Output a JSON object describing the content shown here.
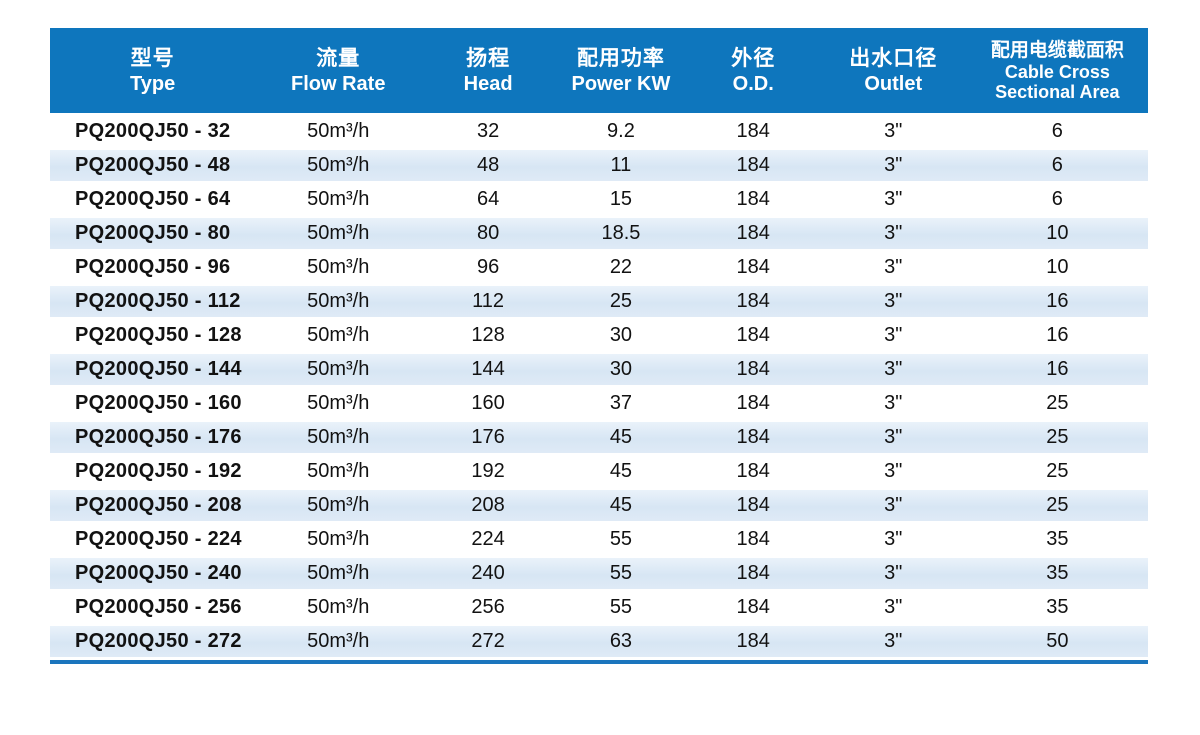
{
  "colors": {
    "header_bg": "#0e76bd",
    "header_text": "#ffffff",
    "stripe": "#d9e7f5",
    "bottom_rule": "#1b75bd",
    "body_text": "#121212",
    "page_bg": "#ffffff"
  },
  "table": {
    "columns": [
      {
        "zh": "型号",
        "en": [
          "Type"
        ]
      },
      {
        "zh": "流量",
        "en": [
          "Flow Rate"
        ]
      },
      {
        "zh": "扬程",
        "en": [
          "Head"
        ]
      },
      {
        "zh": "配用功率",
        "en": [
          "Power KW"
        ]
      },
      {
        "zh": "外径",
        "en": [
          "O.D."
        ]
      },
      {
        "zh": "出水口径",
        "en": [
          "Outlet"
        ]
      },
      {
        "zh": "配用电缆截面积",
        "en": [
          "Cable Cross",
          "Sectional Area"
        ]
      }
    ],
    "rows": [
      [
        "PQ200QJ50 - 32",
        "50m³/h",
        "32",
        "9.2",
        "184",
        "3\"",
        "6"
      ],
      [
        "PQ200QJ50 - 48",
        "50m³/h",
        "48",
        "11",
        "184",
        "3\"",
        "6"
      ],
      [
        "PQ200QJ50 - 64",
        "50m³/h",
        "64",
        "15",
        "184",
        "3\"",
        "6"
      ],
      [
        "PQ200QJ50 - 80",
        "50m³/h",
        "80",
        "18.5",
        "184",
        "3\"",
        "10"
      ],
      [
        "PQ200QJ50 - 96",
        "50m³/h",
        "96",
        "22",
        "184",
        "3\"",
        "10"
      ],
      [
        "PQ200QJ50 - 112",
        "50m³/h",
        "112",
        "25",
        "184",
        "3\"",
        "16"
      ],
      [
        "PQ200QJ50 - 128",
        "50m³/h",
        "128",
        "30",
        "184",
        "3\"",
        "16"
      ],
      [
        "PQ200QJ50 - 144",
        "50m³/h",
        "144",
        "30",
        "184",
        "3\"",
        "16"
      ],
      [
        "PQ200QJ50 - 160",
        "50m³/h",
        "160",
        "37",
        "184",
        "3\"",
        "25"
      ],
      [
        "PQ200QJ50 - 176",
        "50m³/h",
        "176",
        "45",
        "184",
        "3\"",
        "25"
      ],
      [
        "PQ200QJ50 - 192",
        "50m³/h",
        "192",
        "45",
        "184",
        "3\"",
        "25"
      ],
      [
        "PQ200QJ50 - 208",
        "50m³/h",
        "208",
        "45",
        "184",
        "3\"",
        "25"
      ],
      [
        "PQ200QJ50 - 224",
        "50m³/h",
        "224",
        "55",
        "184",
        "3\"",
        "35"
      ],
      [
        "PQ200QJ50 - 240",
        "50m³/h",
        "240",
        "55",
        "184",
        "3\"",
        "35"
      ],
      [
        "PQ200QJ50 - 256",
        "50m³/h",
        "256",
        "55",
        "184",
        "3\"",
        "35"
      ],
      [
        "PQ200QJ50 - 272",
        "50m³/h",
        "272",
        "63",
        "184",
        "3\"",
        "50"
      ]
    ],
    "striped_row_indexes_note": "odd indexes (0-based) have light blue stripe"
  },
  "chart_data": {
    "type": "table",
    "title": "Submersible pump PQ200QJ50 specification table",
    "columns_zh": [
      "型号",
      "流量",
      "扬程",
      "配用功率",
      "外径",
      "出水口径",
      "配用电缆截面积"
    ],
    "columns_en": [
      "Type",
      "Flow Rate",
      "Head",
      "Power KW",
      "O.D.",
      "Outlet",
      "Cable Cross Sectional Area"
    ],
    "heads": [
      32,
      48,
      64,
      80,
      96,
      112,
      128,
      144,
      160,
      176,
      192,
      208,
      224,
      240,
      256,
      272
    ],
    "power_kw": [
      9.2,
      11,
      15,
      18.5,
      22,
      25,
      30,
      30,
      37,
      45,
      45,
      45,
      55,
      55,
      55,
      63
    ],
    "cable_cross_sectional_area": [
      6,
      6,
      6,
      10,
      10,
      16,
      16,
      16,
      25,
      25,
      25,
      25,
      35,
      35,
      35,
      50
    ],
    "flow_rate_all": "50m³/h",
    "od_all": 184,
    "outlet_all": "3\""
  }
}
